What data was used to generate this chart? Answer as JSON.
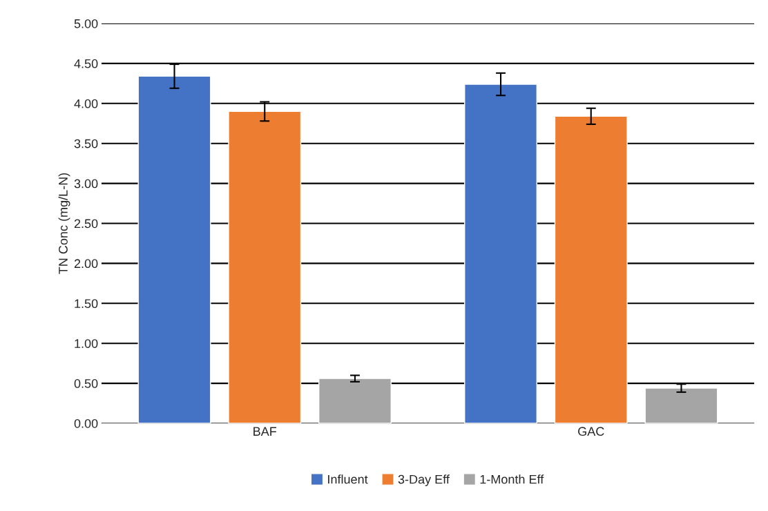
{
  "chart_data": {
    "type": "bar",
    "ylabel": "TN Conc (mg/L-N)",
    "categories": [
      "BAF",
      "GAC"
    ],
    "series": [
      {
        "name": "Influent",
        "color": "#4472c4",
        "values": [
          4.34,
          4.24
        ],
        "errors": [
          0.15,
          0.14
        ]
      },
      {
        "name": "3-Day Eff",
        "color": "#ed7d31",
        "values": [
          3.9,
          3.84
        ],
        "errors": [
          0.12,
          0.1
        ]
      },
      {
        "name": "1-Month Eff",
        "color": "#a5a5a5",
        "values": [
          0.56,
          0.44
        ],
        "errors": [
          0.04,
          0.05
        ]
      }
    ],
    "ylim": [
      0,
      5
    ],
    "yticks": [
      {
        "value": 0,
        "label": "0.00"
      },
      {
        "value": 0.5,
        "label": "0.50"
      },
      {
        "value": 1,
        "label": "1.00"
      },
      {
        "value": 1.5,
        "label": "1.50"
      },
      {
        "value": 2,
        "label": "2.00"
      },
      {
        "value": 2.5,
        "label": "2.50"
      },
      {
        "value": 3,
        "label": "3.00"
      },
      {
        "value": 3.5,
        "label": "3.50"
      },
      {
        "value": 4,
        "label": "4.00"
      },
      {
        "value": 4.5,
        "label": "4.50"
      },
      {
        "value": 5,
        "label": "5.00"
      }
    ],
    "grid": "y",
    "legend": "bottom"
  }
}
